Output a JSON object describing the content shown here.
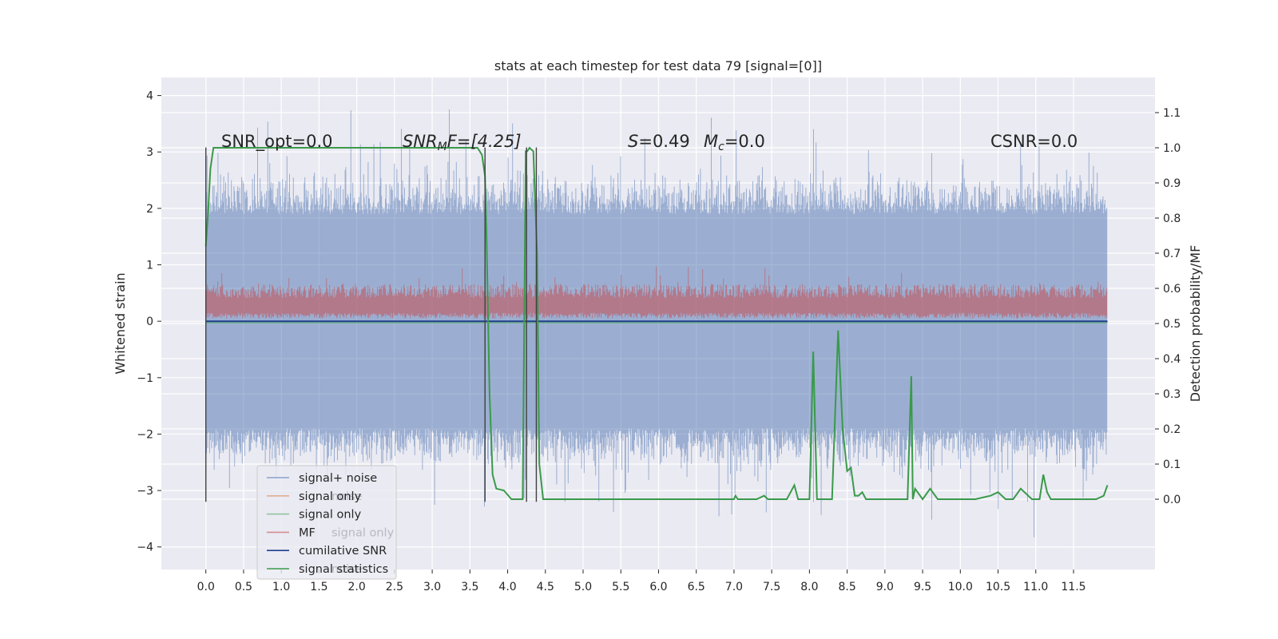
{
  "chart_data": {
    "type": "line",
    "title": "stats at each timestep for test data 79 [signal=[0]]",
    "ylabel_left": "Whitened strain",
    "ylabel_right": "Detection probability/MF",
    "x_ticks": [
      "0.0",
      "0.5",
      "1.0",
      "1.5",
      "2.0",
      "2.5",
      "3.0",
      "3.5",
      "4.0",
      "4.5",
      "5.0",
      "5.5",
      "6.0",
      "6.5",
      "7.0",
      "7.5",
      "8.0",
      "8.5",
      "9.0",
      "9.5",
      "10.0",
      "10.5",
      "11.0",
      "11.5"
    ],
    "y_left_ticks": [
      "−4",
      "−3",
      "−2",
      "−1",
      "0",
      "1",
      "2",
      "3",
      "4"
    ],
    "y_right_ticks": [
      "0.0",
      "0.1",
      "0.2",
      "0.3",
      "0.4",
      "0.5",
      "0.6",
      "0.7",
      "0.8",
      "0.9",
      "1.0",
      "1.1"
    ],
    "xlim": [
      -0.59,
      12.58
    ],
    "ylim_left": [
      -4.4,
      4.32
    ],
    "ylim_right": [
      -0.2,
      1.2
    ],
    "grid": true,
    "legend_position": "lower-left",
    "annotations": {
      "snr_opt": "SNR_opt=0.0",
      "snr_mf_main": "SNR",
      "snr_mf_sub": "M",
      "snr_mf_rest": "F=[4.25]",
      "s_main": "S",
      "s_rest": "=0.49",
      "mc_main": "M",
      "mc_sub": "c",
      "mc_rest": "=0.0",
      "csnr": "CSNR=0.0"
    },
    "legend": [
      {
        "label": "signal+ noise",
        "color": "#4c72b0"
      },
      {
        "label": "signal only",
        "color": "#dd8452"
      },
      {
        "label": "signal only",
        "color": "#55a868"
      },
      {
        "label": "MF",
        "color": "#c44e52"
      },
      {
        "label": "cumilative SNR",
        "color": "#1f3f8f"
      },
      {
        "label": "signal statistics",
        "color": "#3a9a4a"
      }
    ],
    "legend_ghost": [
      {
        "label": "noise"
      },
      {
        "label": "signal only"
      },
      {
        "label": "noise"
      }
    ],
    "vlines_x": [
      0.0,
      3.7,
      4.25,
      4.38
    ],
    "series": [
      {
        "name": "signal statistics",
        "axis": "right",
        "color": "#3a9a4a",
        "x": [
          0.0,
          0.03,
          0.06,
          0.1,
          0.2,
          0.5,
          1.0,
          2.0,
          3.0,
          3.5,
          3.6,
          3.66,
          3.7,
          3.72,
          3.76,
          3.8,
          3.85,
          3.95,
          4.05,
          4.15,
          4.2,
          4.22,
          4.24,
          4.26,
          4.29,
          4.34,
          4.39,
          4.42,
          4.47,
          4.52,
          5.0,
          6.0,
          7.0,
          7.02,
          7.05,
          7.2,
          7.25,
          7.3,
          7.4,
          7.45,
          7.5,
          7.6,
          7.7,
          7.8,
          7.85,
          7.9,
          7.95,
          8.0,
          8.05,
          8.1,
          8.12,
          8.2,
          8.3,
          8.38,
          8.44,
          8.5,
          8.55,
          8.6,
          8.65,
          8.7,
          8.75,
          8.8,
          8.9,
          9.0,
          9.1,
          9.3,
          9.35,
          9.37,
          9.4,
          9.5,
          9.6,
          9.7,
          9.8,
          9.9,
          10.0,
          10.2,
          10.4,
          10.5,
          10.6,
          10.7,
          10.8,
          10.9,
          10.95,
          11.0,
          11.05,
          11.1,
          11.15,
          11.2,
          11.3,
          11.5,
          11.6,
          11.7,
          11.8,
          11.9,
          11.95
        ],
        "y": [
          0.72,
          0.82,
          0.94,
          1.0,
          1.0,
          1.0,
          1.0,
          1.0,
          1.0,
          1.0,
          1.0,
          0.98,
          0.92,
          0.75,
          0.3,
          0.07,
          0.03,
          0.025,
          0.0,
          0.0,
          0.0,
          0.5,
          0.99,
          0.99,
          1.0,
          0.99,
          0.7,
          0.1,
          0.0,
          0.0,
          0.0,
          0.0,
          0.0,
          0.01,
          0.0,
          0.0,
          0.0,
          0.0,
          0.01,
          0.0,
          0.0,
          0.0,
          0.0,
          0.04,
          0.0,
          0.0,
          0.0,
          0.0,
          0.42,
          0.0,
          0.0,
          0.0,
          0.0,
          0.48,
          0.2,
          0.08,
          0.09,
          0.01,
          0.01,
          0.02,
          0.0,
          0.0,
          0.0,
          0.0,
          0.0,
          0.0,
          0.35,
          0.0,
          0.03,
          0.0,
          0.03,
          0.0,
          0.0,
          0.0,
          0.0,
          0.0,
          0.01,
          0.02,
          0.0,
          0.0,
          0.03,
          0.01,
          0.0,
          0.0,
          0.0,
          0.07,
          0.02,
          0.0,
          0.0,
          0.0,
          0.0,
          0.0,
          0.0,
          0.01,
          0.04
        ]
      },
      {
        "name": "cumilative SNR",
        "axis": "left",
        "color": "#1f3f8f",
        "x": [
          0.0,
          11.95
        ],
        "y": [
          0.0,
          0.0
        ]
      }
    ],
    "series_envelopes": [
      {
        "name": "signal+ noise",
        "axis": "left",
        "color": "#4c72b0",
        "x_range": [
          0.0,
          11.95
        ],
        "typical_range": [
          -1.9,
          1.9
        ],
        "extreme_range": [
          -4.0,
          4.0
        ]
      },
      {
        "name": "MF",
        "axis": "left",
        "color": "#c44e52",
        "x_range": [
          0.0,
          11.95
        ],
        "typical_range": [
          0.05,
          0.55
        ],
        "extreme_range": [
          0.0,
          1.0
        ]
      }
    ]
  }
}
